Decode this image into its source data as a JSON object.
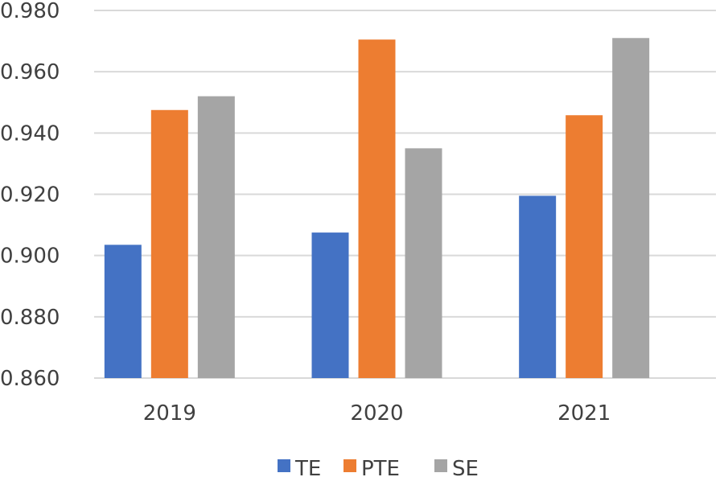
{
  "chart_data": {
    "type": "bar",
    "title": "",
    "xlabel": "",
    "ylabel": "",
    "categories": [
      "2019",
      "2020",
      "2021"
    ],
    "series": [
      {
        "name": "TE",
        "color": "#4472C4",
        "values": [
          0.9035,
          0.9075,
          0.9195
        ]
      },
      {
        "name": "PTE",
        "color": "#ED7D31",
        "values": [
          0.9475,
          0.9705,
          0.9458
        ]
      },
      {
        "name": "SE",
        "color": "#A5A5A5",
        "values": [
          0.952,
          0.935,
          0.971
        ]
      }
    ],
    "ylim": [
      0.86,
      0.98
    ],
    "yticks": [
      "0.860",
      "0.880",
      "0.900",
      "0.920",
      "0.940",
      "0.960",
      "0.980"
    ],
    "grid": true,
    "legend_position": "bottom"
  }
}
